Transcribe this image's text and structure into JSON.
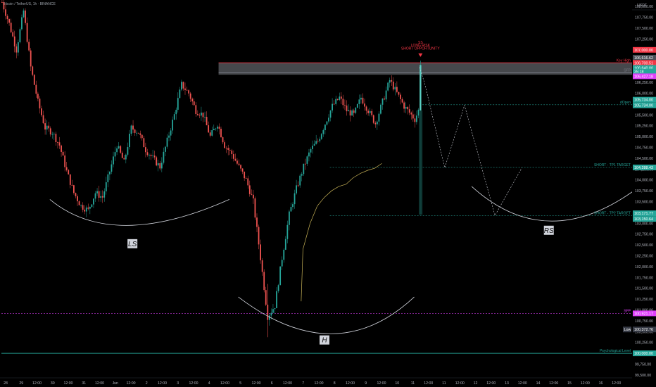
{
  "header": {
    "symbol_title": "Bitcoin / TetherUS, 1h · BINANCE",
    "currency": "USDT"
  },
  "chart_data": {
    "type": "candlestick",
    "x_ticks": [
      "28",
      "29",
      "12:00",
      "30",
      "12:00",
      "31",
      "12:00",
      "Jun",
      "12:00",
      "2",
      "12:00",
      "3",
      "12:00",
      "4",
      "12:00",
      "5",
      "12:00",
      "6",
      "12:00",
      "7",
      "12:00",
      "8",
      "12:00",
      "9",
      "12:00",
      "10",
      "11",
      "12:00",
      "11",
      "12:00",
      "12",
      "12:00",
      "13",
      "12:00",
      "14",
      "12:00",
      "15",
      "12:00",
      "16",
      "12:00"
    ],
    "y_ticks": [
      108000,
      107750,
      107500,
      107250,
      107000,
      106750,
      106500,
      106250,
      106000,
      105750,
      105500,
      105250,
      105000,
      104750,
      104500,
      104250,
      104000,
      103750,
      103500,
      103250,
      103000,
      102750,
      102500,
      102250,
      102000,
      101750,
      101500,
      101250,
      101000,
      100750,
      100500,
      100250,
      100000,
      99750,
      99500
    ],
    "y_tick_labels": [
      "108,000.00",
      "107,750.00",
      "107,500.00",
      "107,250.00",
      "107,000.00",
      "106,750.00",
      "106,500.00",
      "106,250.00",
      "106,000.00",
      "105,750.00",
      "105,500.00",
      "105,250.00",
      "105,000.00",
      "104,750.00",
      "104,500.00",
      "104,250.00",
      "104,000.00",
      "103,750.00",
      "103,500.00",
      "103,250.00",
      "103,000.00",
      "102,750.00",
      "102,500.00",
      "102,250.00",
      "102,000.00",
      "101,750.00",
      "101,500.00",
      "101,250.00",
      "101,000.00",
      "100,750.00",
      "100,500.00",
      "100,250.00",
      "100,000.00",
      "99,750.00",
      "99,500.00"
    ],
    "y_range": [
      99450,
      108150
    ],
    "price_path": [
      [
        0,
        108100
      ],
      [
        4,
        107600
      ],
      [
        8,
        107000
      ],
      [
        12,
        107900
      ],
      [
        16,
        106600
      ],
      [
        20,
        105800
      ],
      [
        24,
        105200
      ],
      [
        28,
        105100
      ],
      [
        32,
        104800
      ],
      [
        36,
        104200
      ],
      [
        40,
        103700
      ],
      [
        44,
        103400
      ],
      [
        48,
        103300
      ],
      [
        52,
        103700
      ],
      [
        56,
        103600
      ],
      [
        60,
        104200
      ],
      [
        64,
        104800
      ],
      [
        68,
        104400
      ],
      [
        72,
        105200
      ],
      [
        76,
        105100
      ],
      [
        80,
        104700
      ],
      [
        84,
        104500
      ],
      [
        88,
        104300
      ],
      [
        92,
        104900
      ],
      [
        96,
        105500
      ],
      [
        100,
        106200
      ],
      [
        104,
        106000
      ],
      [
        108,
        105600
      ],
      [
        112,
        105500
      ],
      [
        116,
        105000
      ],
      [
        120,
        105300
      ],
      [
        124,
        104800
      ],
      [
        128,
        104600
      ],
      [
        132,
        104300
      ],
      [
        136,
        104000
      ],
      [
        140,
        103500
      ],
      [
        144,
        102200
      ],
      [
        148,
        100850
      ],
      [
        152,
        101100
      ],
      [
        156,
        102200
      ],
      [
        160,
        103200
      ],
      [
        164,
        103800
      ],
      [
        168,
        104300
      ],
      [
        172,
        104700
      ],
      [
        176,
        104900
      ],
      [
        180,
        105300
      ],
      [
        184,
        105700
      ],
      [
        188,
        105900
      ],
      [
        192,
        105600
      ],
      [
        196,
        105500
      ],
      [
        200,
        105900
      ],
      [
        204,
        105600
      ],
      [
        208,
        105300
      ],
      [
        212,
        105800
      ],
      [
        216,
        106300
      ],
      [
        220,
        106000
      ],
      [
        224,
        105700
      ],
      [
        228,
        105500
      ],
      [
        230,
        105400
      ],
      [
        232,
        105600
      ]
    ],
    "moving_average": [
      [
        167,
        101200
      ],
      [
        168,
        102400
      ],
      [
        172,
        103000
      ],
      [
        176,
        103400
      ],
      [
        180,
        103600
      ],
      [
        184,
        103750
      ],
      [
        188,
        103850
      ],
      [
        192,
        103900
      ],
      [
        196,
        104050
      ],
      [
        200,
        104150
      ],
      [
        204,
        104220
      ],
      [
        208,
        104270
      ],
      [
        212,
        104380
      ]
    ],
    "last_candle": {
      "open": 105600,
      "close": 106650,
      "low": 103200,
      "high": 106750
    },
    "projected_path": [
      [
        233,
        106600
      ],
      [
        236,
        106200
      ],
      [
        247,
        104280
      ],
      [
        258,
        105720
      ],
      [
        275,
        103180
      ],
      [
        290,
        104280
      ]
    ],
    "zones": [
      {
        "name": "key-high-zone",
        "from": 106427.18,
        "to": 106700.51,
        "color": "#5d6066"
      }
    ],
    "levels": [
      {
        "label": "Key High",
        "price": 106700.51,
        "color": "#f23645",
        "style": "solid"
      },
      {
        "label": "SFP",
        "price": 106470,
        "color": "#787b86",
        "style": "solid"
      },
      {
        "label": "dOpen",
        "price": 105734.0,
        "color": "#26a69a",
        "style": "dashed"
      },
      {
        "label": "SHORT - TP1 TARGET",
        "price": 104288.43,
        "color": "#26a69a",
        "style": "dashed"
      },
      {
        "label": "SHORT - TP2 TARGET",
        "price": 103171.77,
        "color": "#26a69a",
        "style": "dashed"
      },
      {
        "label": "SFP",
        "price": 100921.17,
        "color": "#e040fb",
        "style": "dashed"
      },
      {
        "label": "Psychological Level",
        "price": 100000.0,
        "color": "#26a69a",
        "style": "solid"
      }
    ],
    "price_tags": [
      {
        "text": "107,000.00",
        "price": 107000,
        "color": "#f23645"
      },
      {
        "text": "106,616.62",
        "price": 106820,
        "color": "#4a4d55"
      },
      {
        "text": "106,700.51",
        "price": 106700,
        "color": "#f23645"
      },
      {
        "text": "106,640.00",
        "price": 106585,
        "color": "#26a69a"
      },
      {
        "text": "35:18",
        "price": 106500,
        "color": "#26a69a"
      },
      {
        "text": "106,427.18",
        "price": 106390,
        "color": "#e040fb"
      },
      {
        "text": "105,734.00",
        "price": 105850,
        "color": "#26a69a"
      },
      {
        "text": "105,734.00",
        "price": 105720,
        "color": "#26a69a"
      },
      {
        "text": "104,288.43",
        "price": 104288,
        "color": "#26a69a"
      },
      {
        "text": "103,171.77",
        "price": 103230,
        "color": "#26a69a"
      },
      {
        "text": "103,150.64",
        "price": 103100,
        "color": "#26a69a"
      },
      {
        "text": "100,921.17",
        "price": 100921,
        "color": "#e040fb"
      },
      {
        "text": "Low",
        "price": 100550,
        "color": "#363a45",
        "inline": true
      },
      {
        "text": "100,372.76",
        "price": 100550,
        "color": "#363a45"
      },
      {
        "text": "100,000.00",
        "price": 100000,
        "color": "#26a69a"
      }
    ],
    "patterns": [
      {
        "label": "LS",
        "arc": [
          [
            27,
            103550
          ],
          [
            62,
            102950
          ],
          [
            127,
            103550
          ]
        ],
        "label_at": [
          73,
          102520
        ]
      },
      {
        "label": "H",
        "arc": [
          [
            132,
            101300
          ],
          [
            186,
            100450
          ],
          [
            230,
            101300
          ]
        ],
        "label_at": [
          180,
          100300
        ]
      },
      {
        "label": "RS",
        "arc": [
          [
            262,
            103850
          ],
          [
            304,
            103050
          ],
          [
            354,
            103800
          ]
        ],
        "label_at": [
          305,
          102830
        ]
      }
    ],
    "signal": {
      "lines": [
        "SS",
        "LONG RISK",
        "SHORT OPPORTUNITY"
      ],
      "price": 106950
    },
    "annotations": [
      "Key High",
      "SFP",
      "dOpen",
      "SHORT - TP1 TARGET",
      "SHORT - TP2 TARGET",
      "SFP",
      "Psychological Level"
    ]
  },
  "colors": {
    "up": "#26a69a",
    "down": "#ef5350",
    "ma": "#c9b458",
    "background": "#000000"
  }
}
